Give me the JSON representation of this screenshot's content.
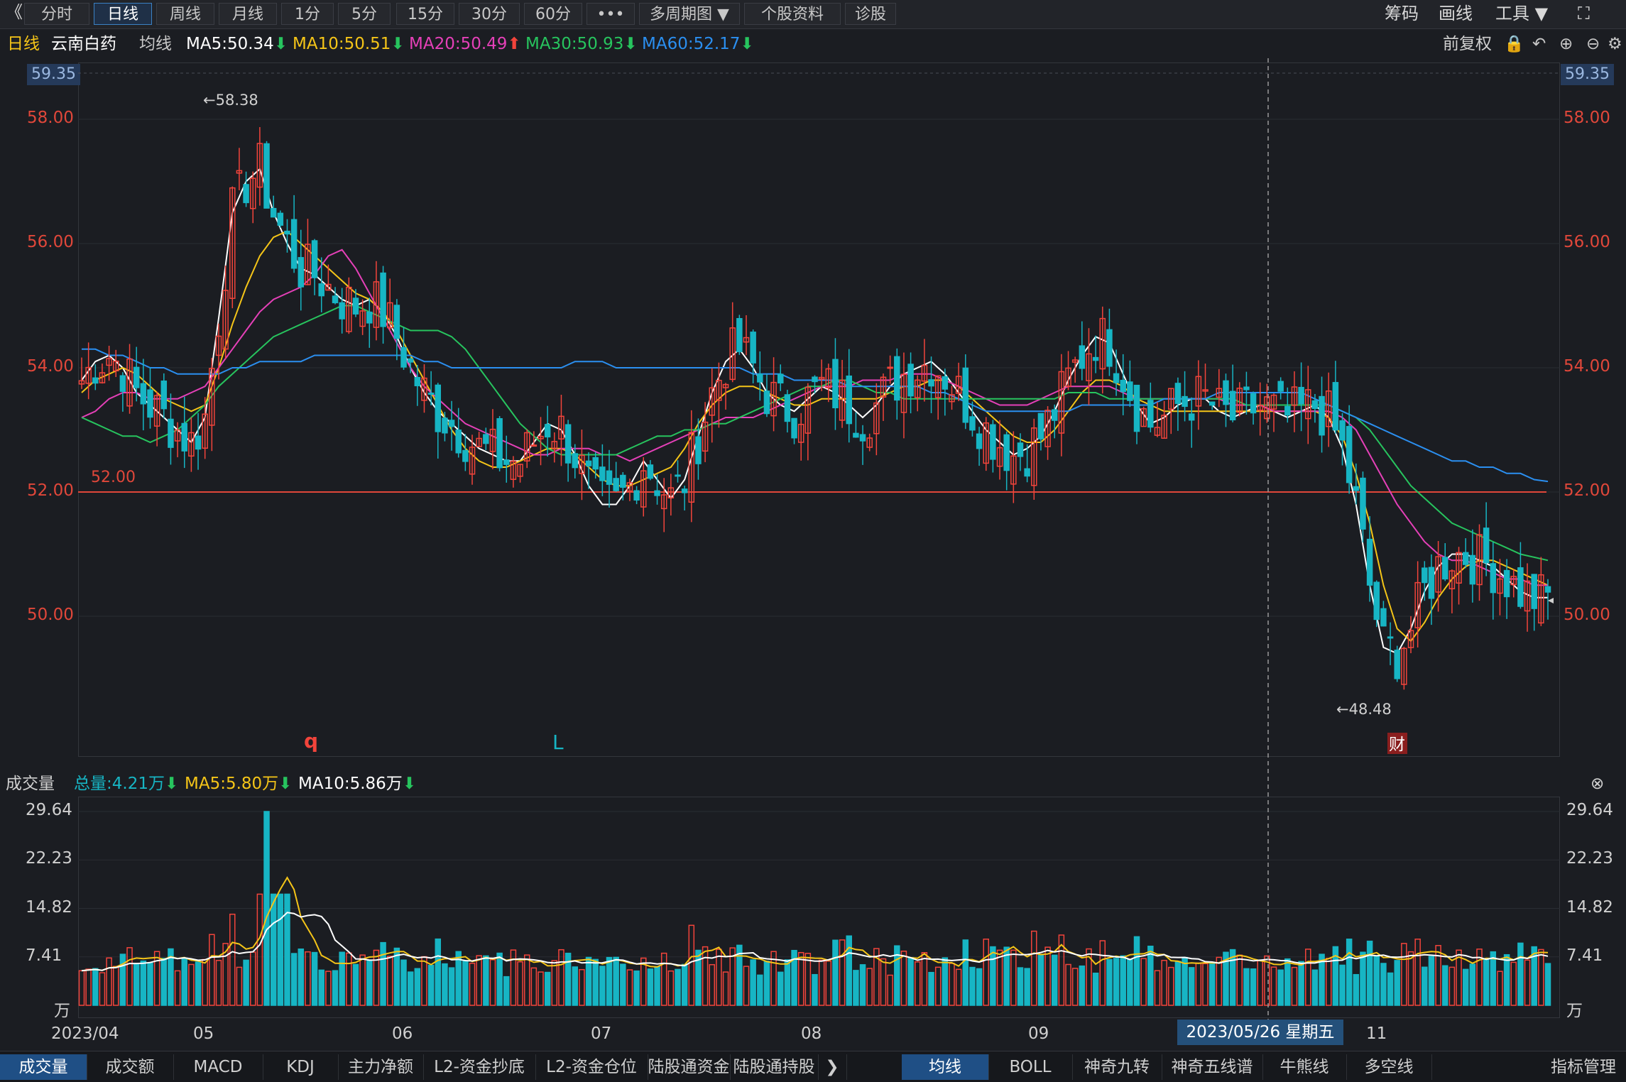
{
  "toolbar": {
    "back": "《",
    "tabs": [
      {
        "label": "分时"
      },
      {
        "label": "日线",
        "active": true
      },
      {
        "label": "周线"
      },
      {
        "label": "月线"
      },
      {
        "label": "1分"
      },
      {
        "label": "5分"
      },
      {
        "label": "15分"
      },
      {
        "label": "30分"
      },
      {
        "label": "60分"
      },
      {
        "label": "•••"
      },
      {
        "label": "多周期图 ▼"
      },
      {
        "label": "个股资料"
      },
      {
        "label": "诊股"
      }
    ],
    "right": {
      "chips": "筹码",
      "draw": "画线",
      "tools": "工具 ▼",
      "fullscreen": "⛶"
    }
  },
  "ma_bar": {
    "period": "日线",
    "stock": "云南白药",
    "ma_title": "均线",
    "ma5": "MA5:50.34",
    "ma10": "MA10:50.51",
    "ma20": "MA20:50.49",
    "ma30": "MA30:50.93",
    "ma60": "MA60:52.17",
    "fuquan": "前复权"
  },
  "colors": {
    "up": "#f2443b",
    "down": "#17b5c4",
    "ma5": "#ffffff",
    "ma10": "#f5c518",
    "ma20": "#e540b8",
    "ma30": "#27c45e",
    "ma60": "#2b8ff0",
    "ref": "#e0473a"
  },
  "price_axis": {
    "top": "59.35",
    "ticks": [
      "58.00",
      "56.00",
      "54.00",
      "52.00",
      "50.00"
    ],
    "ref_line": "52.00",
    "high_label": "←58.38",
    "low_label": "←48.48"
  },
  "annotations": {
    "q": "q",
    "L": "L",
    "cai": "财"
  },
  "volume_bar": {
    "title": "成交量",
    "total": "总量:4.21万",
    "ma5": "MA5:5.80万",
    "ma10": "MA10:5.86万"
  },
  "volume_axis": {
    "ticks": [
      "29.64",
      "22.23",
      "14.82",
      "7.41"
    ],
    "unit": "万"
  },
  "x_axis": {
    "labels": [
      "2023/04",
      "05",
      "06",
      "07",
      "08",
      "09",
      "11"
    ],
    "crosshair_date": "2023/05/26 星期五"
  },
  "bottom_tabs": {
    "left": [
      "成交量",
      "成交额",
      "MACD",
      "KDJ",
      "主力净额",
      "L2-资金抄底",
      "L2-资金仓位",
      "陆股通资金",
      "陆股通持股"
    ],
    "more": "❯",
    "right": [
      "均线",
      "BOLL",
      "神奇九转",
      "神奇五线谱",
      "牛熊线",
      "多空线"
    ],
    "settings": "指标管理"
  },
  "chart_data": {
    "type": "candlestick",
    "title": "",
    "ylim": [
      47.8,
      59.35
    ],
    "volume_max": 29.64,
    "ma_series": [
      {
        "name": "MA5",
        "values": [
          53.8,
          54.1,
          54.2,
          54.0,
          53.6,
          53.4,
          53.2,
          53.0,
          52.8,
          53.2,
          54.8,
          56.5,
          57.0,
          57.2,
          56.5,
          56.0,
          55.6,
          55.5,
          55.3,
          55.1,
          55.0,
          55.1,
          54.9,
          54.5,
          54.0,
          53.6,
          53.3,
          53.1,
          52.9,
          52.7,
          52.6,
          52.5,
          52.5,
          52.8,
          53.1,
          53.0,
          52.6,
          52.1,
          51.8,
          51.8,
          52.1,
          52.5,
          52.2,
          51.9,
          52.2,
          52.9,
          53.6,
          54.1,
          54.3,
          54.0,
          53.6,
          53.4,
          53.3,
          53.5,
          53.7,
          53.6,
          53.4,
          53.2,
          53.4,
          53.7,
          53.9,
          54.0,
          54.1,
          53.9,
          53.6,
          53.3,
          53.0,
          52.8,
          52.6,
          52.7,
          52.9,
          53.3,
          53.8,
          54.2,
          54.5,
          54.4,
          53.9,
          53.4,
          53.1,
          53.2,
          53.4,
          53.5,
          53.5,
          53.3,
          53.2,
          53.3,
          53.4,
          53.3,
          53.2,
          53.3,
          53.4,
          53.2,
          52.7,
          51.8,
          50.5,
          49.5,
          49.4,
          49.8,
          50.4,
          50.8,
          51.0,
          51.0,
          50.9,
          50.8,
          50.6,
          50.4,
          50.3,
          50.3
        ]
      },
      {
        "name": "MA10",
        "values": [
          53.6,
          53.8,
          53.9,
          54.0,
          53.9,
          53.7,
          53.5,
          53.4,
          53.3,
          53.4,
          54.0,
          54.7,
          55.3,
          55.8,
          56.1,
          56.2,
          56.0,
          55.8,
          55.6,
          55.4,
          55.2,
          55.1,
          54.9,
          54.6,
          54.2,
          53.8,
          53.4,
          53.0,
          52.7,
          52.5,
          52.4,
          52.4,
          52.5,
          52.6,
          52.7,
          52.7,
          52.6,
          52.4,
          52.2,
          52.1,
          52.1,
          52.2,
          52.3,
          52.4,
          52.7,
          53.1,
          53.4,
          53.6,
          53.7,
          53.7,
          53.6,
          53.5,
          53.4,
          53.4,
          53.5,
          53.5,
          53.5,
          53.5,
          53.5,
          53.6,
          53.7,
          53.7,
          53.8,
          53.8,
          53.7,
          53.5,
          53.3,
          53.1,
          52.9,
          52.8,
          52.8,
          53.0,
          53.3,
          53.6,
          53.8,
          53.8,
          53.7,
          53.5,
          53.4,
          53.3,
          53.3,
          53.3,
          53.3,
          53.3,
          53.3,
          53.3,
          53.3,
          53.3,
          53.3,
          53.3,
          53.3,
          53.2,
          52.9,
          52.3,
          51.5,
          50.5,
          49.8,
          49.6,
          49.9,
          50.3,
          50.6,
          50.8,
          50.9,
          50.9,
          50.8,
          50.7,
          50.6,
          50.5
        ]
      },
      {
        "name": "MA20",
        "values": [
          53.2,
          53.3,
          53.5,
          53.6,
          53.6,
          53.5,
          53.5,
          53.5,
          53.6,
          53.7,
          54.0,
          54.3,
          54.6,
          54.9,
          55.1,
          55.2,
          55.3,
          55.5,
          55.8,
          55.9,
          55.6,
          55.2,
          54.8,
          54.4,
          54.0,
          53.7,
          53.5,
          53.3,
          53.1,
          53.0,
          52.9,
          52.8,
          52.7,
          52.6,
          52.6,
          52.7,
          52.7,
          52.7,
          52.6,
          52.6,
          52.5,
          52.6,
          52.7,
          52.8,
          52.9,
          53.0,
          53.1,
          53.2,
          53.2,
          53.2,
          53.3,
          53.4,
          53.5,
          53.6,
          53.7,
          53.7,
          53.7,
          53.8,
          53.8,
          53.8,
          53.9,
          53.9,
          53.9,
          53.8,
          53.7,
          53.6,
          53.5,
          53.4,
          53.4,
          53.4,
          53.5,
          53.6,
          53.7,
          53.7,
          53.7,
          53.7,
          53.6,
          53.5,
          53.5,
          53.5,
          53.5,
          53.5,
          53.5,
          53.5,
          53.4,
          53.4,
          53.4,
          53.3,
          53.3,
          53.3,
          53.3,
          53.3,
          53.2,
          53.0,
          52.6,
          52.2,
          51.8,
          51.5,
          51.2,
          51.0,
          50.9,
          50.9,
          50.8,
          50.7,
          50.6,
          50.6,
          50.5,
          50.5
        ]
      },
      {
        "name": "MA30",
        "values": [
          53.2,
          53.1,
          53.0,
          52.9,
          52.9,
          52.8,
          52.9,
          53.0,
          53.2,
          53.4,
          53.7,
          53.9,
          54.1,
          54.3,
          54.5,
          54.6,
          54.7,
          54.8,
          54.9,
          55.0,
          55.0,
          54.9,
          54.8,
          54.7,
          54.6,
          54.6,
          54.6,
          54.5,
          54.3,
          54.0,
          53.7,
          53.4,
          53.1,
          52.9,
          52.7,
          52.6,
          52.6,
          52.6,
          52.6,
          52.6,
          52.7,
          52.8,
          52.9,
          52.9,
          53.0,
          53.0,
          53.1,
          53.1,
          53.2,
          53.3,
          53.4,
          53.5,
          53.6,
          53.7,
          53.7,
          53.8,
          53.8,
          53.7,
          53.6,
          53.6,
          53.5,
          53.5,
          53.5,
          53.5,
          53.5,
          53.5,
          53.5,
          53.5,
          53.5,
          53.5,
          53.5,
          53.5,
          53.6,
          53.6,
          53.6,
          53.5,
          53.5,
          53.5,
          53.5,
          53.5,
          53.5,
          53.5,
          53.5,
          53.5,
          53.5,
          53.4,
          53.4,
          53.4,
          53.4,
          53.4,
          53.4,
          53.4,
          53.3,
          53.2,
          53.0,
          52.7,
          52.4,
          52.1,
          51.9,
          51.7,
          51.5,
          51.4,
          51.3,
          51.2,
          51.1,
          51.0,
          50.95,
          50.9
        ]
      },
      {
        "name": "MA60",
        "values": [
          54.3,
          54.3,
          54.2,
          54.2,
          54.1,
          54.0,
          54.0,
          53.9,
          53.9,
          53.9,
          53.9,
          54.0,
          54.0,
          54.1,
          54.1,
          54.1,
          54.1,
          54.2,
          54.2,
          54.2,
          54.2,
          54.2,
          54.2,
          54.2,
          54.2,
          54.1,
          54.1,
          54.0,
          54.0,
          54.0,
          54.0,
          54.0,
          54.0,
          54.0,
          54.0,
          54.0,
          54.1,
          54.1,
          54.1,
          54.0,
          54.0,
          54.0,
          54.0,
          54.0,
          54.0,
          54.0,
          54.0,
          54.0,
          54.0,
          53.9,
          53.9,
          53.9,
          53.8,
          53.8,
          53.8,
          53.8,
          53.7,
          53.7,
          53.7,
          53.7,
          53.7,
          53.7,
          53.6,
          53.6,
          53.5,
          53.4,
          53.3,
          53.3,
          53.3,
          53.3,
          53.3,
          53.3,
          53.3,
          53.4,
          53.4,
          53.4,
          53.4,
          53.4,
          53.4,
          53.5,
          53.5,
          53.5,
          53.5,
          53.6,
          53.6,
          53.6,
          53.6,
          53.6,
          53.6,
          53.6,
          53.5,
          53.4,
          53.3,
          53.2,
          53.1,
          53.0,
          52.9,
          52.8,
          52.7,
          52.6,
          52.5,
          52.5,
          52.4,
          52.4,
          52.3,
          52.3,
          52.2,
          52.17
        ]
      }
    ]
  }
}
